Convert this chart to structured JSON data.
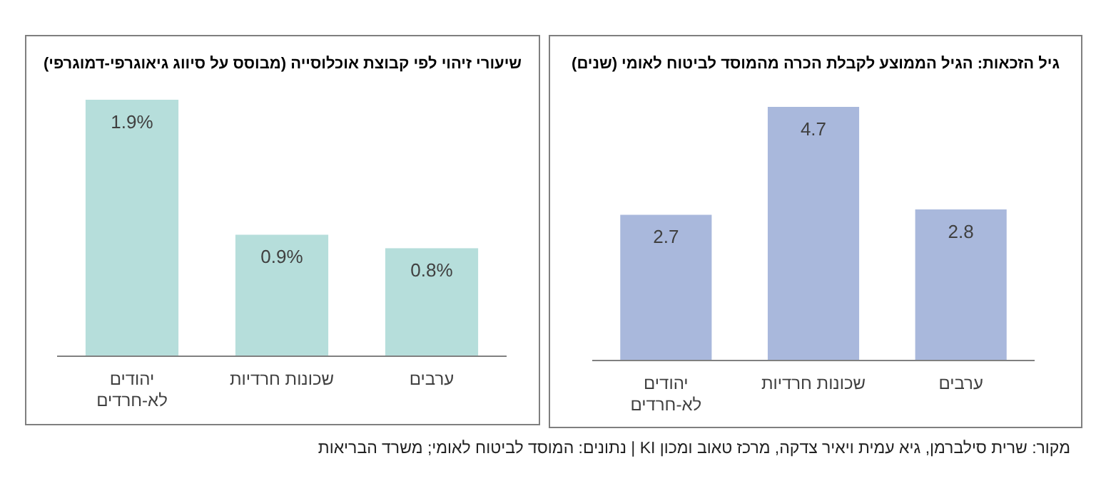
{
  "chart_data": [
    {
      "type": "bar",
      "title": "גיל הזכאות: הגיל הממוצע לקבלת הכרה מהמוסד לביטוח לאומי (שנים)",
      "categories": [
        "יהודים לא-חרדים",
        "שכונות חרדיות",
        "ערבים"
      ],
      "values": [
        2.7,
        4.7,
        2.8
      ],
      "color": "#a9b8dc",
      "data_labels": true,
      "annotations": [
        "מקור: שרית סילברמן, גיא עמית ויאיר צדקה, מרכז טאוב ומכון KI | נתונים: המוסד לביטוח לאומי; משרד הבריאות"
      ]
    },
    {
      "type": "bar",
      "title": "שיעורי זיהוי לפי קבוצת אוכלוסייה (מבוסס על סיווג גיאוגרפי-דמוגרפי)",
      "categories": [
        "יהודים לא-חרדים",
        "שכונות חרדיות",
        "ערבים"
      ],
      "values": [
        1.9,
        0.9,
        0.8
      ],
      "color": "#b6dedb",
      "value_labels": [
        "1.9%",
        "0.9%",
        "0.8%"
      ]
    }
  ]
}
